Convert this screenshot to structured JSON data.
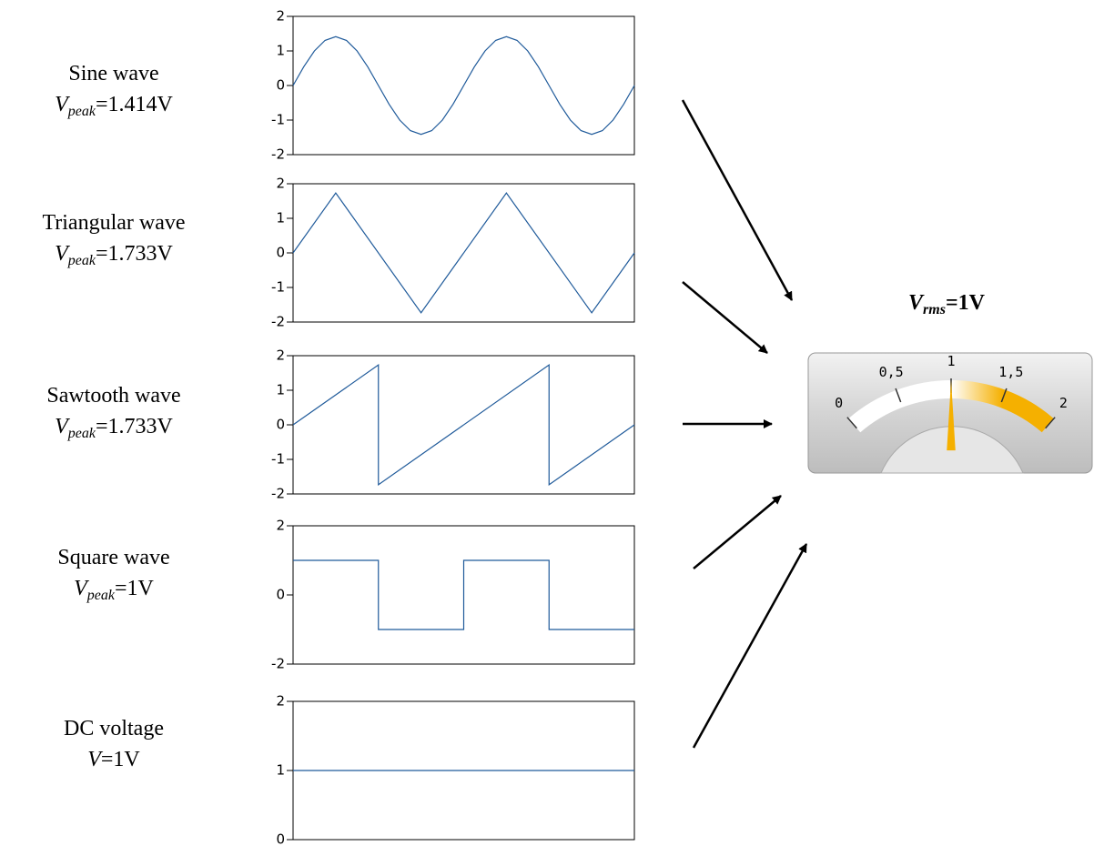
{
  "chart_data": [
    {
      "type": "line",
      "xlim": [
        0,
        1
      ],
      "ylim": [
        -2,
        2
      ],
      "yticks": [
        -2,
        -1,
        0,
        1,
        2
      ],
      "series": [
        {
          "color": "#1f5a9a",
          "x": [
            0,
            0.03125,
            0.0625,
            0.09375,
            0.125,
            0.15625,
            0.1875,
            0.21875,
            0.25,
            0.28125,
            0.3125,
            0.34375,
            0.375,
            0.40625,
            0.4375,
            0.46875,
            0.5,
            0.53125,
            0.5625,
            0.59375,
            0.625,
            0.65625,
            0.6875,
            0.71875,
            0.75,
            0.78125,
            0.8125,
            0.84375,
            0.875,
            0.90625,
            0.9375,
            0.96875,
            1
          ],
          "values": [
            0,
            0.541,
            1.0,
            1.306,
            1.414,
            1.306,
            1.0,
            0.541,
            0,
            -0.541,
            -1.0,
            -1.306,
            -1.414,
            -1.306,
            -1.0,
            -0.541,
            0,
            0.541,
            1.0,
            1.306,
            1.414,
            1.306,
            1.0,
            0.541,
            0,
            -0.541,
            -1.0,
            -1.306,
            -1.414,
            -1.306,
            -1.0,
            -0.541,
            0
          ]
        }
      ]
    },
    {
      "type": "line",
      "xlim": [
        0,
        1
      ],
      "ylim": [
        -2,
        2
      ],
      "yticks": [
        -2,
        -1,
        0,
        1,
        2
      ],
      "series": [
        {
          "color": "#1f5a9a",
          "x": [
            0,
            0.125,
            0.375,
            0.625,
            0.875,
            1
          ],
          "values": [
            0,
            1.733,
            -1.733,
            1.733,
            -1.733,
            0
          ]
        }
      ]
    },
    {
      "type": "line",
      "xlim": [
        0,
        1
      ],
      "ylim": [
        -2,
        2
      ],
      "yticks": [
        -2,
        -1,
        0,
        1,
        2
      ],
      "series": [
        {
          "color": "#1f5a9a",
          "x": [
            0,
            0.25,
            0.25,
            0.75,
            0.75,
            1
          ],
          "values": [
            0,
            1.733,
            -1.733,
            1.733,
            -1.733,
            0
          ]
        }
      ]
    },
    {
      "type": "line",
      "xlim": [
        0,
        1
      ],
      "ylim": [
        -2,
        2
      ],
      "yticks": [
        -2,
        0,
        2
      ],
      "series": [
        {
          "color": "#1f5a9a",
          "x": [
            0,
            0.25,
            0.25,
            0.5,
            0.5,
            0.75,
            0.75,
            1
          ],
          "values": [
            1,
            1,
            -1,
            -1,
            1,
            1,
            -1,
            -1
          ]
        }
      ]
    },
    {
      "type": "line",
      "xlim": [
        0,
        1
      ],
      "ylim": [
        0,
        2
      ],
      "yticks": [
        0,
        1,
        2
      ],
      "series": [
        {
          "color": "#1f5a9a",
          "x": [
            0,
            1
          ],
          "values": [
            1,
            1
          ]
        }
      ]
    }
  ],
  "labels": [
    {
      "name": "Sine wave",
      "symbol": "V",
      "subscript": "peak",
      "value": "=1.414V"
    },
    {
      "name": "Triangular wave",
      "symbol": "V",
      "subscript": "peak",
      "value": "=1.733V"
    },
    {
      "name": "Sawtooth wave",
      "symbol": "V",
      "subscript": "peak",
      "value": "=1.733V"
    },
    {
      "name": "Square wave",
      "symbol": "V",
      "subscript": "peak",
      "value": "=1V"
    },
    {
      "name": "DC voltage",
      "symbol": "V",
      "value": "=1V"
    }
  ],
  "meter": {
    "symbol": "V",
    "subscript": "rms",
    "value": "=1V",
    "range": [
      0,
      2
    ],
    "ticks": [
      0,
      {
        "value": 0.5,
        "label": "0,5"
      },
      1,
      {
        "value": 1.5,
        "label": "1,5"
      },
      2
    ],
    "needle": 1,
    "color": "#f5b000"
  }
}
